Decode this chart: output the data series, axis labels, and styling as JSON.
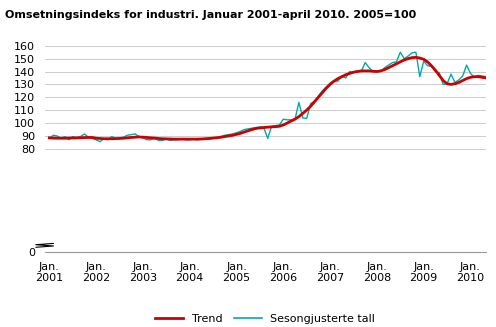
{
  "title": "Omsetningsindeks for industri. Januar 2001-april 2010. 2005=100",
  "ylim": [
    0,
    160
  ],
  "yticks": [
    0,
    80,
    90,
    100,
    110,
    120,
    130,
    140,
    150,
    160
  ],
  "trend_color": "#cc0000",
  "seasonal_color": "#00aaaa",
  "trend_linewidth": 2.0,
  "seasonal_linewidth": 1.0,
  "background_color": "#ffffff",
  "grid_color": "#cccccc",
  "legend_trend": "Trend",
  "legend_seasonal": "Sesongjusterte tall",
  "trend": [
    88.5,
    88.3,
    88.2,
    88.2,
    88.2,
    88.3,
    88.4,
    88.5,
    88.6,
    88.7,
    88.8,
    88.8,
    88.2,
    88.0,
    87.8,
    87.8,
    87.8,
    87.9,
    88.0,
    88.2,
    88.5,
    88.8,
    89.0,
    89.2,
    89.0,
    88.8,
    88.5,
    88.3,
    88.0,
    87.8,
    87.7,
    87.6,
    87.5,
    87.5,
    87.5,
    87.5,
    87.5,
    87.5,
    87.5,
    87.6,
    87.8,
    88.0,
    88.3,
    88.6,
    89.0,
    89.5,
    90.0,
    90.5,
    91.2,
    92.0,
    93.0,
    94.0,
    95.0,
    95.8,
    96.2,
    96.5,
    96.8,
    97.0,
    97.2,
    97.5,
    98.5,
    100.0,
    101.5,
    103.0,
    105.0,
    107.5,
    110.0,
    113.0,
    116.5,
    120.0,
    123.5,
    127.0,
    130.0,
    132.5,
    134.5,
    136.0,
    137.5,
    138.5,
    139.5,
    140.0,
    140.5,
    140.5,
    140.5,
    140.2,
    140.0,
    140.5,
    141.5,
    143.0,
    144.5,
    146.0,
    147.5,
    149.0,
    150.0,
    150.8,
    151.0,
    150.5,
    149.5,
    147.5,
    144.5,
    141.0,
    137.0,
    133.0,
    130.5,
    130.0,
    130.5,
    131.5,
    133.0,
    134.5,
    135.5,
    136.0,
    136.0,
    135.5,
    135.0
  ],
  "seasonal": [
    88.0,
    90.5,
    90.0,
    88.0,
    89.5,
    87.0,
    89.5,
    88.5,
    89.5,
    91.5,
    89.0,
    88.0,
    87.0,
    85.5,
    88.0,
    87.0,
    89.5,
    88.0,
    88.5,
    89.0,
    90.5,
    91.0,
    91.5,
    89.5,
    88.5,
    87.0,
    87.0,
    88.0,
    86.5,
    86.5,
    87.5,
    86.5,
    87.0,
    87.0,
    88.0,
    87.0,
    87.0,
    87.5,
    87.0,
    87.5,
    88.0,
    87.5,
    88.5,
    88.0,
    89.5,
    90.5,
    91.0,
    91.5,
    92.5,
    93.5,
    95.0,
    95.5,
    96.0,
    96.5,
    97.0,
    96.5,
    88.0,
    97.5,
    98.0,
    98.5,
    103.0,
    102.5,
    102.5,
    103.0,
    116.0,
    104.0,
    103.5,
    115.0,
    117.0,
    121.0,
    125.0,
    128.0,
    131.0,
    133.0,
    132.5,
    136.5,
    135.0,
    140.0,
    139.0,
    140.5,
    140.0,
    147.0,
    143.0,
    140.0,
    140.5,
    140.0,
    143.0,
    145.0,
    147.0,
    147.5,
    155.0,
    150.0,
    152.0,
    154.5,
    155.0,
    136.0,
    148.0,
    144.5,
    144.0,
    140.0,
    139.0,
    130.0,
    130.5,
    138.0,
    131.5,
    133.5,
    136.5,
    145.0,
    138.5,
    135.5,
    137.0,
    136.5,
    136.0
  ]
}
